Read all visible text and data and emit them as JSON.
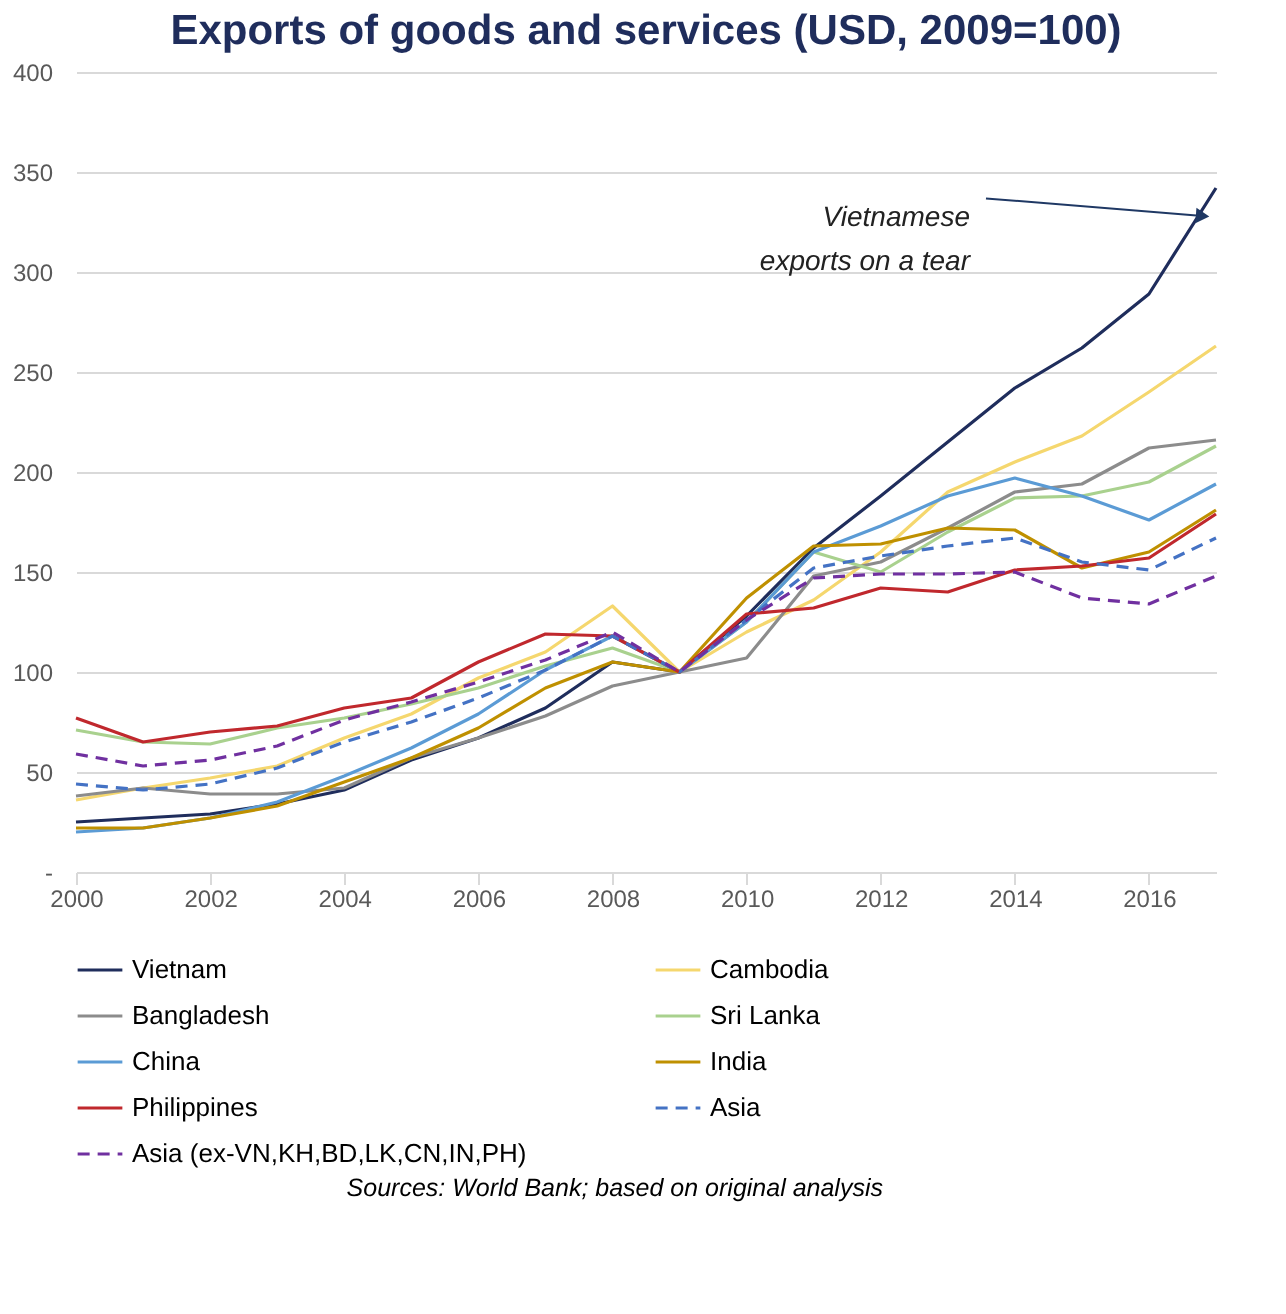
{
  "chart_data": {
    "type": "line",
    "title": "Exports of goods and services (USD, 2009=100)",
    "x": [
      2000,
      2001,
      2002,
      2003,
      2004,
      2005,
      2006,
      2007,
      2008,
      2009,
      2010,
      2011,
      2012,
      2013,
      2014,
      2015,
      2016,
      2017
    ],
    "xlim": [
      2000,
      2017
    ],
    "xticks": [
      2000,
      2002,
      2004,
      2006,
      2008,
      2010,
      2012,
      2014,
      2016
    ],
    "ylim": [
      0,
      400
    ],
    "yticks": [
      {
        "value": 0,
        "label": "-"
      },
      50,
      100,
      150,
      200,
      250,
      300,
      350,
      400
    ],
    "grid": "y",
    "legend": "bottom",
    "marker": "none",
    "series": [
      {
        "name": "Vietnam",
        "color": "#1f2d5c",
        "line_style": "solid",
        "values": [
          25,
          27,
          29,
          34,
          41,
          56,
          67,
          82,
          105,
          100,
          128,
          162,
          188,
          215,
          242,
          262,
          289,
          342
        ]
      },
      {
        "name": "Cambodia",
        "color": "#f5d76e",
        "line_style": "solid",
        "values": [
          36,
          42,
          47,
          53,
          67,
          79,
          97,
          110,
          133,
          100,
          120,
          136,
          160,
          190,
          205,
          218,
          240,
          263
        ]
      },
      {
        "name": "Bangladesh",
        "color": "#8c8c8c",
        "line_style": "solid",
        "values": [
          38,
          42,
          39,
          39,
          42,
          57,
          67,
          78,
          93,
          100,
          107,
          148,
          155,
          172,
          190,
          194,
          212,
          216
        ]
      },
      {
        "name": "Sri Lanka",
        "color": "#a9d18e",
        "line_style": "solid",
        "values": [
          71,
          65,
          64,
          72,
          77,
          84,
          92,
          103,
          112,
          100,
          125,
          160,
          150,
          170,
          187,
          188,
          195,
          213
        ]
      },
      {
        "name": "China",
        "color": "#5b9bd5",
        "line_style": "solid",
        "values": [
          20,
          22,
          27,
          35,
          48,
          62,
          79,
          101,
          118,
          100,
          125,
          160,
          173,
          188,
          197,
          188,
          176,
          194
        ]
      },
      {
        "name": "India",
        "color": "#bf9000",
        "line_style": "solid",
        "values": [
          22,
          22,
          27,
          33,
          45,
          57,
          72,
          92,
          105,
          100,
          137,
          163,
          164,
          172,
          171,
          152,
          160,
          181
        ]
      },
      {
        "name": "Philippines",
        "color": "#c0282d",
        "line_style": "solid",
        "values": [
          77,
          65,
          70,
          73,
          82,
          87,
          105,
          119,
          118,
          100,
          129,
          132,
          142,
          140,
          151,
          153,
          157,
          179
        ]
      },
      {
        "name": "Asia",
        "color": "#4472c4",
        "line_style": "dashed",
        "values": [
          44,
          41,
          44,
          52,
          65,
          75,
          87,
          101,
          118,
          100,
          126,
          152,
          158,
          163,
          167,
          155,
          151,
          167
        ]
      },
      {
        "name": "Asia (ex-VN,KH,BD,LK,CN,IN,PH)",
        "color": "#7030a0",
        "line_style": "dashed",
        "values": [
          59,
          53,
          56,
          63,
          76,
          85,
          95,
          106,
          120,
          100,
          126,
          147,
          149,
          149,
          150,
          137,
          134,
          148
        ]
      }
    ],
    "annotations": [
      {
        "text": "Vietnamese exports on a tear",
        "x": 2016.8,
        "y": 328
      },
      "Sources: World Bank; based on original analysis"
    ]
  }
}
